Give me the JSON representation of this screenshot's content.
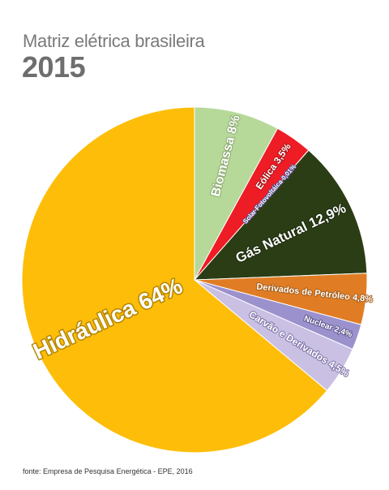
{
  "header": {
    "title": "Matriz elétrica brasileira",
    "year": "2015"
  },
  "footer": {
    "source": "fonte: Empresa de Pesquisa Energética - EPE, 2016"
  },
  "chart_data": {
    "type": "pie",
    "title": "Matriz elétrica brasileira",
    "subtitle": "2015",
    "unit": "%",
    "start_angle_deg": 0,
    "direction": "clockwise",
    "slices": [
      {
        "name": "Biomassa",
        "value": 8,
        "label": "Biomassa 8%",
        "color": "#b6d99a",
        "outline": "#8aa86f"
      },
      {
        "name": "Eólica",
        "value": 3.5,
        "label": "Eólica 3,5%",
        "color": "#ee1c25",
        "outline": "#a8141a"
      },
      {
        "name": "Solar Fotovoltáica",
        "value": 0.01,
        "label": "Solar Fotovoltáica 0,01%",
        "color": "#9b88c4",
        "outline": "#5e4e8a"
      },
      {
        "name": "Gás Natural",
        "value": 12.9,
        "label": "Gás Natural 12,9%",
        "color": "#2b3d14",
        "outline": "#1b280b"
      },
      {
        "name": "Derivados de Petróleo",
        "value": 4.8,
        "label": "Derivados de Petróleo 4,8%",
        "color": "#e07d24",
        "outline": "#a35a17"
      },
      {
        "name": "Nuclear",
        "value": 2.4,
        "label": "Nuclear 2,4%",
        "color": "#9b91cc",
        "outline": "#5f568d"
      },
      {
        "name": "Carvão e Derivados",
        "value": 4.5,
        "label": "Carvão e Derivados 4,5%",
        "color": "#c9c0e3",
        "outline": "#7d72a8"
      },
      {
        "name": "Hidráulica",
        "value": 64,
        "label": "Hidráulica 64%",
        "color": "#fdbd09",
        "outline": "#b48600"
      }
    ]
  }
}
